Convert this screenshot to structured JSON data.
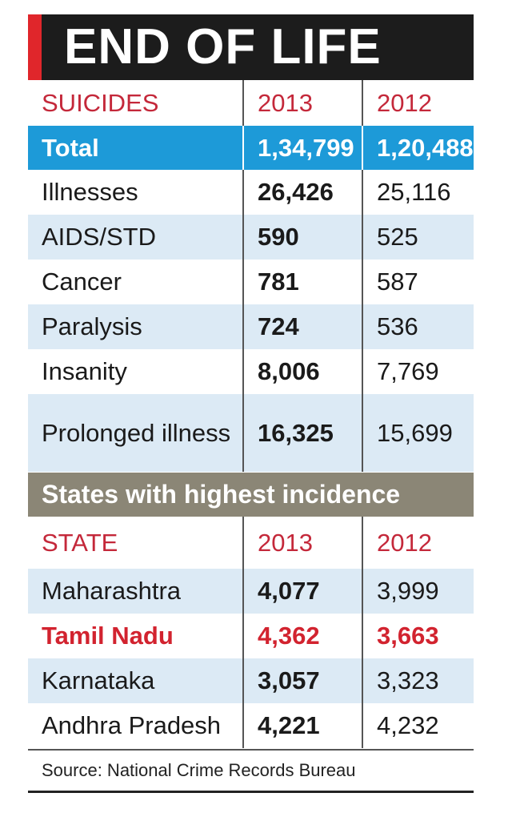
{
  "title": "END OF LIFE",
  "table1": {
    "header": [
      "SUICIDES",
      "2013",
      "2012"
    ],
    "rows": [
      [
        "Total",
        "1,34,799",
        "1,20,488"
      ],
      [
        "Illnesses",
        "26,426",
        "25,116"
      ],
      [
        "AIDS/STD",
        "590",
        "525"
      ],
      [
        "Cancer",
        "781",
        "587"
      ],
      [
        "Paralysis",
        "724",
        "536"
      ],
      [
        "Insanity",
        "8,006",
        "7,769"
      ],
      [
        "Prolonged illness",
        "16,325",
        "15,699"
      ]
    ]
  },
  "section_title": "States with highest incidence",
  "table2": {
    "header": [
      "STATE",
      "2013",
      "2012"
    ],
    "rows": [
      [
        "Maharashtra",
        "4,077",
        "3,999"
      ],
      [
        "Tamil Nadu",
        "4,362",
        "3,663"
      ],
      [
        "Karnataka",
        "3,057",
        "3,323"
      ],
      [
        "Andhra Pradesh",
        "4,221",
        "4,232"
      ]
    ]
  },
  "source": "Source: National Crime Records Bureau"
}
